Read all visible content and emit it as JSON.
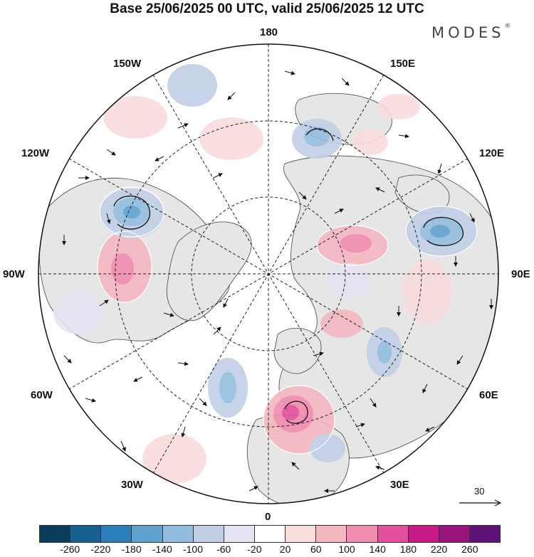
{
  "title": "Base 25/06/2025 00 UTC, valid 25/06/2025 12 UTC",
  "brand": {
    "name": "MODES",
    "mark": "®"
  },
  "longitude_labels": {
    "north": "180",
    "south": "0",
    "west": "90W",
    "east": "90E",
    "nw150": "150W",
    "ne150": "150E",
    "nw120": "120W",
    "ne120": "120E",
    "sw60": "60W",
    "se60": "60E",
    "sw30": "30W",
    "se30": "30E"
  },
  "vector_scale": {
    "value": "30"
  },
  "colorbar": {
    "colors": [
      "#0b3d5c",
      "#14608f",
      "#2a7fba",
      "#5fa2d0",
      "#93bde0",
      "#c1cfe6",
      "#e4e3f1",
      "#ffffff",
      "#f9dcdc",
      "#f5b8c1",
      "#f08cb0",
      "#e44f9e",
      "#c81a86",
      "#97147c",
      "#5e1276"
    ],
    "ticks": [
      "-260",
      "-220",
      "-180",
      "-140",
      "-100",
      "-60",
      "-20",
      "20",
      "60",
      "100",
      "140",
      "180",
      "220",
      "260"
    ]
  }
}
